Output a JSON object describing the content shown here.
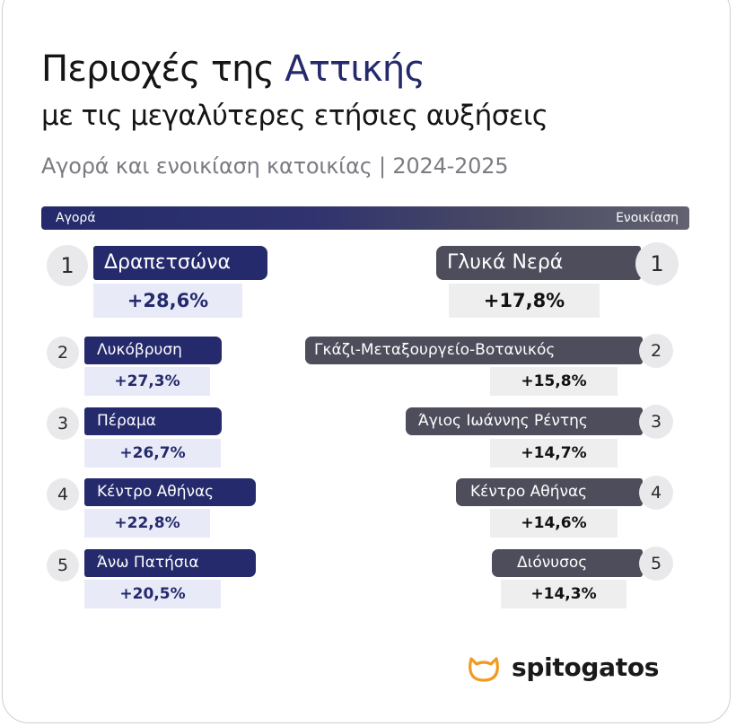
{
  "title": {
    "line1_before": "Περιοχές της ",
    "line1_highlight": "Αττικής",
    "line2": "με τις μεγαλύτερες ετήσιες αυξήσεις"
  },
  "subtitle": "Αγορά και ενοικίαση κατοικίας | 2024-2025",
  "banner": {
    "left": "Αγορά",
    "right": "Ενοικίαση"
  },
  "buy": [
    {
      "rank": "1",
      "area": "Δραπετσώνα",
      "change": "+28,6%"
    },
    {
      "rank": "2",
      "area": "Λυκόβρυση",
      "change": "+27,3%"
    },
    {
      "rank": "3",
      "area": "Πέραμα",
      "change": "+26,7%"
    },
    {
      "rank": "4",
      "area": "Κέντρο Αθήνας",
      "change": "+22,8%"
    },
    {
      "rank": "5",
      "area": "Άνω Πατήσια",
      "change": "+20,5%"
    }
  ],
  "rent": [
    {
      "rank": "1",
      "area": "Γλυκά Νερά",
      "change": "+17,8%"
    },
    {
      "rank": "2",
      "area": "Γκάζι-Μεταξουργείο-Βοτανικός",
      "change": "+15,8%"
    },
    {
      "rank": "3",
      "area": "Άγιος Ιωάννης Ρέντης",
      "change": "+14,7%"
    },
    {
      "rank": "4",
      "area": "Κέντρο Αθήνας",
      "change": "+14,6%"
    },
    {
      "rank": "5",
      "area": "Διόνυσος",
      "change": "+14,3%"
    }
  ],
  "logo": {
    "text": "spitogatos",
    "icon": "cat-icon"
  },
  "colors": {
    "buy": "#242a6b",
    "buy_value_bg": "#e9eaf8",
    "rent": "#4d4d5b",
    "rent_value_bg": "#eeeeee",
    "logo_icon": "#f29a1f"
  }
}
